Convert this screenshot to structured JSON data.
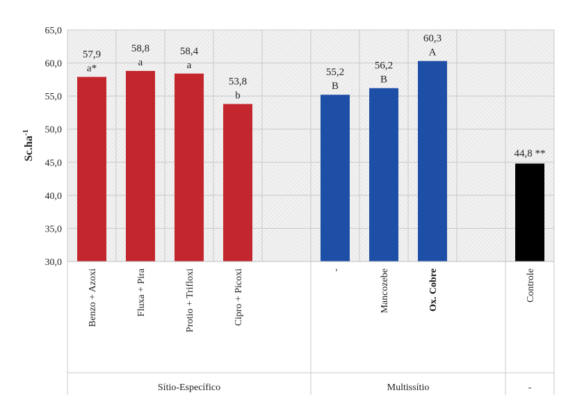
{
  "chart_data": {
    "type": "bar",
    "title": "",
    "xlabel": "",
    "ylabel": {
      "base": "Sc.ha",
      "sup": "-1"
    },
    "ylim": [
      30,
      65
    ],
    "yticks": [
      "30,0",
      "35,0",
      "40,0",
      "45,0",
      "50,0",
      "55,0",
      "60,0",
      "65,0"
    ],
    "grid": true,
    "legend": "none",
    "categories": [
      "Benzo + Azoxi",
      "Fluxa + Pira",
      "Protio + Trifloxi",
      "Cipro + Picoxi",
      "",
      "-",
      "Mancozebe",
      "Ox. Cobre",
      "",
      "Controle"
    ],
    "values": [
      57.9,
      58.8,
      58.4,
      53.8,
      null,
      55.2,
      56.2,
      60.3,
      null,
      44.8
    ],
    "value_labels": [
      "57,9",
      "58,8",
      "58,4",
      "53,8",
      "",
      "55,2",
      "56,2",
      "60,3",
      "",
      "44,8 **"
    ],
    "letter_labels": [
      "a*",
      "a",
      "a",
      "b",
      "",
      "B",
      "B",
      "A",
      "",
      ""
    ],
    "bold_categories": [
      false,
      false,
      false,
      false,
      false,
      false,
      false,
      true,
      false,
      false
    ],
    "bar_colors": [
      "#c3262c",
      "#c3262c",
      "#c3262c",
      "#c3262c",
      "",
      "#1d4fa6",
      "#1d4fa6",
      "#1d4fa6",
      "",
      "#000000"
    ],
    "groups": [
      {
        "label": "Sítio-Específico",
        "start": 0,
        "end": 4
      },
      {
        "label": "Multissítio",
        "start": 5,
        "end": 8
      },
      {
        "label": "-",
        "start": 9,
        "end": 9
      }
    ]
  }
}
